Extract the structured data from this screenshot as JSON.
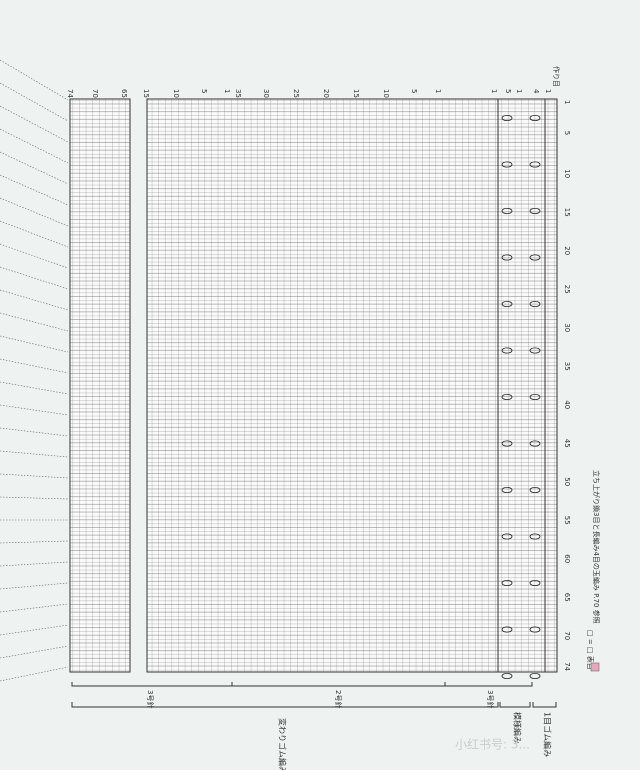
{
  "chart_header": {
    "cast_on": "作り目"
  },
  "column_numbers": [
    "74",
    "70",
    "65",
    "15",
    "10",
    "5",
    "1",
    "35",
    "30",
    "25",
    "20",
    "15",
    "10",
    "5",
    "1",
    "1",
    "5",
    "1",
    "4",
    "1"
  ],
  "row_numbers": [
    1,
    5,
    10,
    15,
    20,
    25,
    30,
    35,
    40,
    45,
    50,
    55,
    60,
    65,
    70,
    74
  ],
  "needle_labels": [
    "3号針",
    "2号針",
    "3号針"
  ],
  "section_labels": [
    "変わりゴム編み",
    "模様編み",
    "1目ゴム編み"
  ],
  "legend": {
    "knit": "□ = □ 表目",
    "bobble": "立ち上がり鎖3目と長編み4目の玉編み P.70 参照"
  },
  "watermark": "小红书号: 3..."
}
